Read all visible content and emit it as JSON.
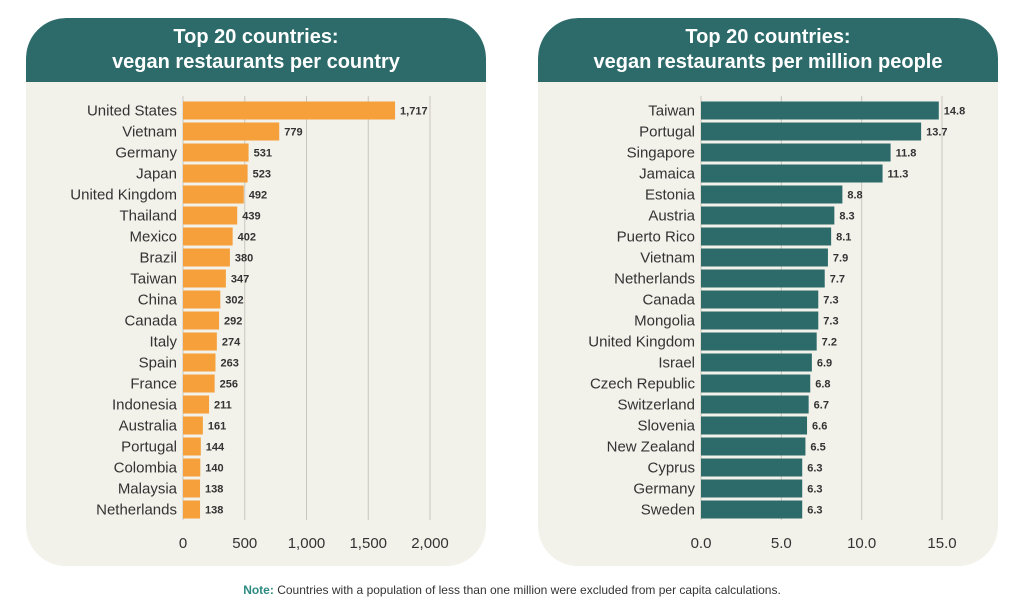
{
  "colors": {
    "header_bg": "#2d6b6b",
    "panel_bg": "#f2f1ea",
    "left_bar": "#f5a03a",
    "right_bar": "#2d6b6b",
    "note_label": "#2d8a82"
  },
  "chart_data": [
    {
      "type": "bar",
      "orientation": "horizontal",
      "title_line1": "Top 20 countries:",
      "title_line2": "vegan restaurants per country",
      "categories": [
        "United States",
        "Vietnam",
        "Germany",
        "Japan",
        "United Kingdom",
        "Thailand",
        "Mexico",
        "Brazil",
        "Taiwan",
        "China",
        "Canada",
        "Italy",
        "Spain",
        "France",
        "Indonesia",
        "Australia",
        "Portugal",
        "Colombia",
        "Malaysia",
        "Netherlands"
      ],
      "values": [
        1717,
        779,
        531,
        523,
        492,
        439,
        402,
        380,
        347,
        302,
        292,
        274,
        263,
        256,
        211,
        161,
        144,
        140,
        138,
        138
      ],
      "value_labels": [
        "1,717",
        "779",
        "531",
        "523",
        "492",
        "439",
        "402",
        "380",
        "347",
        "302",
        "292",
        "274",
        "263",
        "256",
        "211",
        "161",
        "144",
        "140",
        "138",
        "138"
      ],
      "xlim": [
        0,
        2000
      ],
      "ticks": [
        0,
        500,
        1000,
        1500,
        2000
      ],
      "tick_labels": [
        "0",
        "500",
        "1,000",
        "1,500",
        "2,000"
      ],
      "grid": true
    },
    {
      "type": "bar",
      "orientation": "horizontal",
      "title_line1": "Top 20 countries:",
      "title_line2": "vegan restaurants per million people",
      "categories": [
        "Taiwan",
        "Portugal",
        "Singapore",
        "Jamaica",
        "Estonia",
        "Austria",
        "Puerto Rico",
        "Vietnam",
        "Netherlands",
        "Canada",
        "Mongolia",
        "United Kingdom",
        "Israel",
        "Czech Republic",
        "Switzerland",
        "Slovenia",
        "New Zealand",
        "Cyprus",
        "Germany",
        "Sweden"
      ],
      "values": [
        14.8,
        13.7,
        11.8,
        11.3,
        8.8,
        8.3,
        8.1,
        7.9,
        7.7,
        7.3,
        7.3,
        7.2,
        6.9,
        6.8,
        6.7,
        6.6,
        6.5,
        6.3,
        6.3,
        6.3
      ],
      "value_labels": [
        "14.8",
        "13.7",
        "11.8",
        "11.3",
        "8.8",
        "8.3",
        "8.1",
        "7.9",
        "7.7",
        "7.3",
        "7.3",
        "7.2",
        "6.9",
        "6.8",
        "6.7",
        "6.6",
        "6.5",
        "6.3",
        "6.3",
        "6.3"
      ],
      "xlim": [
        0,
        15
      ],
      "ticks": [
        0,
        5,
        10,
        15
      ],
      "tick_labels": [
        "0.0",
        "5.0",
        "10.0",
        "15.0"
      ],
      "grid": true
    }
  ],
  "note": {
    "label": "Note:",
    "text": " Countries with a population of less than one million were excluded from per capita calculations."
  }
}
